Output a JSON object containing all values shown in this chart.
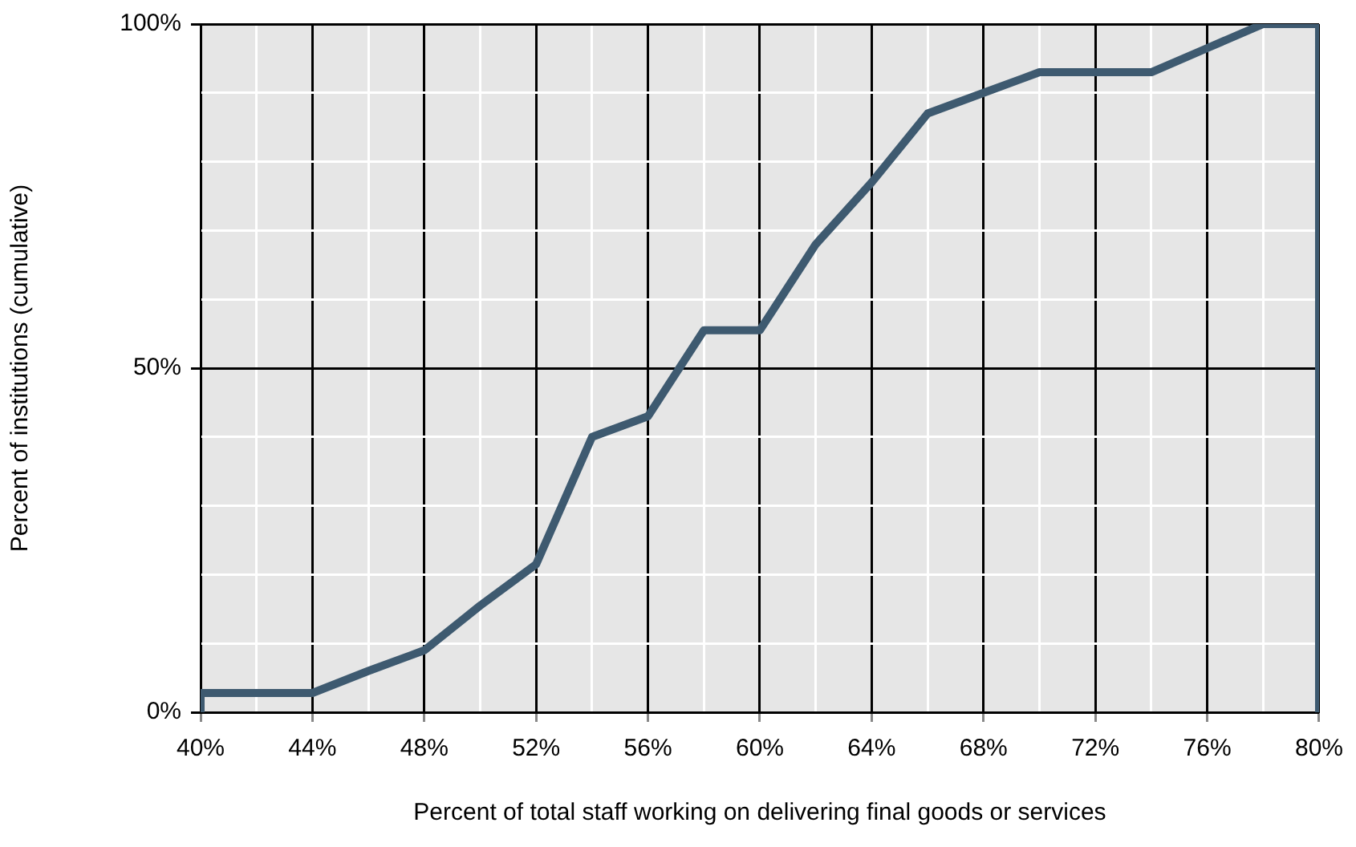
{
  "chart_data": {
    "type": "line",
    "xlabel": "Percent of total staff working on delivering final goods or services",
    "ylabel": "Percent of institutions (cumulative)",
    "x": [
      40,
      40,
      42,
      44,
      46,
      48,
      50,
      52,
      54,
      56,
      58,
      60,
      62,
      64,
      66,
      68,
      70,
      72,
      74,
      76,
      78,
      80,
      80
    ],
    "series": [
      {
        "color": "#3e5a70",
        "values": [
          0,
          2.8,
          2.8,
          2.8,
          6,
          9,
          15.5,
          21.5,
          40,
          43,
          55.5,
          55.5,
          68,
          77,
          87,
          90,
          93,
          93,
          93,
          96.5,
          100,
          100,
          0
        ]
      }
    ],
    "xlim": [
      40,
      80
    ],
    "ylim": [
      0,
      100
    ],
    "xticks": [
      {
        "value": 40,
        "label": "40%"
      },
      {
        "value": 42,
        "label": null
      },
      {
        "value": 44,
        "label": "44%"
      },
      {
        "value": 46,
        "label": null
      },
      {
        "value": 48,
        "label": "48%"
      },
      {
        "value": 50,
        "label": null
      },
      {
        "value": 52,
        "label": "52%"
      },
      {
        "value": 54,
        "label": null
      },
      {
        "value": 56,
        "label": "56%"
      },
      {
        "value": 58,
        "label": null
      },
      {
        "value": 60,
        "label": "60%"
      },
      {
        "value": 62,
        "label": null
      },
      {
        "value": 64,
        "label": "64%"
      },
      {
        "value": 66,
        "label": null
      },
      {
        "value": 68,
        "label": "68%"
      },
      {
        "value": 70,
        "label": null
      },
      {
        "value": 72,
        "label": "72%"
      },
      {
        "value": 74,
        "label": null
      },
      {
        "value": 76,
        "label": "76%"
      },
      {
        "value": 78,
        "label": null
      },
      {
        "value": 80,
        "label": "80%"
      }
    ],
    "yticks": [
      {
        "value": 0,
        "label": "0%"
      },
      {
        "value": 10,
        "label": null
      },
      {
        "value": 20,
        "label": null
      },
      {
        "value": 30,
        "label": null
      },
      {
        "value": 40,
        "label": null
      },
      {
        "value": 50,
        "label": "50%"
      },
      {
        "value": 60,
        "label": null
      },
      {
        "value": 70,
        "label": null
      },
      {
        "value": 80,
        "label": null
      },
      {
        "value": 90,
        "label": null
      },
      {
        "value": 100,
        "label": "100%"
      }
    ],
    "grid": true,
    "legend": false,
    "marker": "none",
    "line_style": "solid"
  }
}
